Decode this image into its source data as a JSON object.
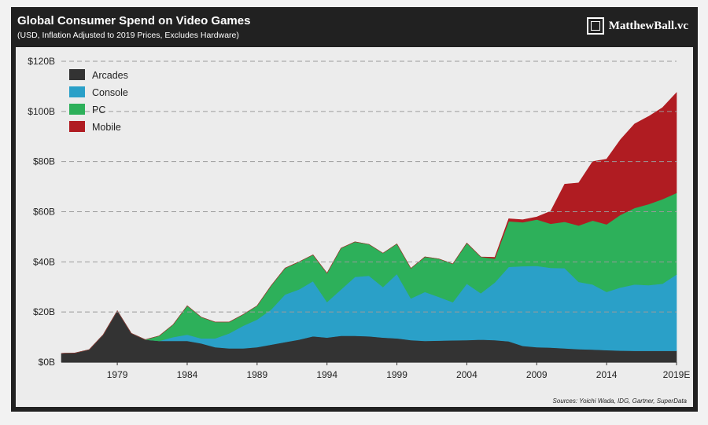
{
  "header": {
    "title": "Global Consumer Spend on Video Games",
    "subtitle": "(USD, Inflation Adjusted to 2019 Prices, Excludes Hardware)",
    "brand": "MatthewBall.vc",
    "brand_icon": "frame-logo-icon"
  },
  "footer": {
    "source": "Sources: Yoichi Wada, IDG, Gartner, SuperData"
  },
  "chart_data": {
    "type": "area",
    "stacked": true,
    "title": "Global Consumer Spend on Video Games",
    "xlabel": "",
    "ylabel": "",
    "ylim": [
      0,
      120
    ],
    "y_ticks": [
      0,
      20,
      40,
      60,
      80,
      100,
      120
    ],
    "y_tick_labels": [
      "$0B",
      "$20B",
      "$40B",
      "$60B",
      "$80B",
      "$100B",
      "$120B"
    ],
    "x_tick_labels": [
      "1979",
      "1984",
      "1989",
      "1994",
      "1999",
      "2004",
      "2009",
      "2014",
      "2019E"
    ],
    "grid": true,
    "legend_position": "top-left",
    "x": [
      1975,
      1976,
      1977,
      1978,
      1979,
      1980,
      1981,
      1982,
      1983,
      1984,
      1985,
      1986,
      1987,
      1988,
      1989,
      1990,
      1991,
      1992,
      1993,
      1994,
      1995,
      1996,
      1997,
      1998,
      1999,
      2000,
      2001,
      2002,
      2003,
      2004,
      2005,
      2006,
      2007,
      2008,
      2009,
      2010,
      2011,
      2012,
      2013,
      2014,
      2015,
      2016,
      2017,
      2018,
      2019
    ],
    "series": [
      {
        "name": "Arcades",
        "color": "#333333",
        "values": [
          3.5,
          3.7,
          5,
          11,
          20.5,
          11.5,
          9,
          8.5,
          8.5,
          8.5,
          7.5,
          6,
          5.5,
          5.5,
          6,
          7,
          8,
          9,
          10.3,
          9.8,
          10.5,
          10.5,
          10.3,
          9.8,
          9.5,
          8.8,
          8.5,
          8.6,
          8.7,
          8.8,
          9,
          8.8,
          8.3,
          6.5,
          6,
          5.8,
          5.5,
          5.2,
          5,
          4.8,
          4.6,
          4.5,
          4.5,
          4.5,
          4.5
        ]
      },
      {
        "name": "Console",
        "color": "#2aa0c8",
        "values": [
          0,
          0,
          0,
          0,
          0,
          0,
          0,
          0,
          1.5,
          2.5,
          2,
          3.5,
          6,
          9,
          11,
          14,
          19,
          20,
          22,
          14.2,
          18.5,
          23.5,
          24.2,
          20.2,
          25.7,
          16.6,
          19.5,
          17.4,
          15.2,
          22.5,
          18.5,
          23,
          29.7,
          31.8,
          32.4,
          31.8,
          32,
          26.8,
          26,
          23.2,
          25.2,
          26.5,
          26.2,
          26.8,
          30.5
        ]
      },
      {
        "name": "PC",
        "color": "#2db05a",
        "values": [
          0,
          0,
          0,
          0,
          0,
          0,
          0,
          2,
          5,
          11.5,
          8.5,
          6.5,
          4.5,
          4.5,
          5.5,
          9.5,
          10.5,
          11,
          10.5,
          11.5,
          16.5,
          14,
          12.5,
          13.5,
          12,
          12,
          14,
          15.2,
          15.3,
          16.2,
          14.5,
          9.5,
          18.2,
          17.5,
          18.5,
          17.6,
          18.5,
          22.5,
          25.5,
          27,
          29,
          30.5,
          32.3,
          33.7,
          32.5
        ]
      },
      {
        "name": "Mobile",
        "color": "#b01c22",
        "values": [
          0,
          0,
          0,
          0,
          0,
          0,
          0,
          0,
          0,
          0,
          0,
          0,
          0,
          0,
          0,
          0,
          0,
          0,
          0,
          0,
          0,
          0,
          0,
          0,
          0,
          0,
          0,
          0,
          0,
          0,
          0,
          0.5,
          1,
          1,
          1,
          5,
          15,
          17,
          23.5,
          26,
          30,
          33.5,
          35,
          36.5,
          40
        ]
      }
    ]
  }
}
